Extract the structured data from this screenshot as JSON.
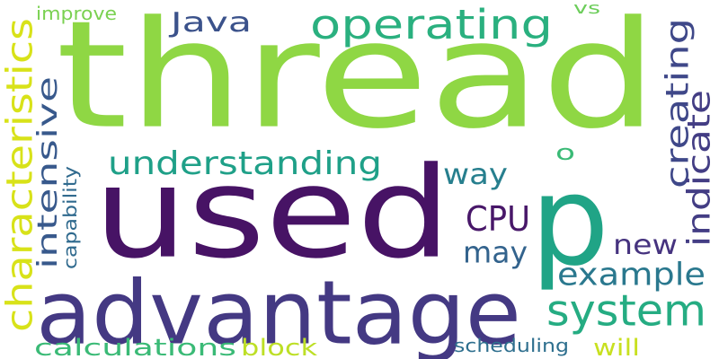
{
  "words": [
    {
      "id": "thread",
      "text": "thread",
      "color": "#8fd744",
      "vertical": false
    },
    {
      "id": "used",
      "text": "used",
      "color": "#471365",
      "vertical": false
    },
    {
      "id": "p",
      "text": "p",
      "color": "#20a486",
      "vertical": false
    },
    {
      "id": "advantage",
      "text": "advantage",
      "color": "#443983",
      "vertical": false
    },
    {
      "id": "operating",
      "text": "operating",
      "color": "#2ab07f",
      "vertical": false
    },
    {
      "id": "system",
      "text": "system",
      "color": "#25ac82",
      "vertical": false
    },
    {
      "id": "understanding",
      "text": "understanding",
      "color": "#1fa088",
      "vertical": false
    },
    {
      "id": "java",
      "text": "Java",
      "color": "#3b528b",
      "vertical": false
    },
    {
      "id": "characteristics",
      "text": "characteristics",
      "color": "#d8e219",
      "vertical": true
    },
    {
      "id": "intensive",
      "text": "intensive",
      "color": "#38598c",
      "vertical": true
    },
    {
      "id": "creating",
      "text": "creating",
      "color": "#3f4889",
      "vertical": true
    },
    {
      "id": "indicate",
      "text": "indicate",
      "color": "#433d84",
      "vertical": true
    },
    {
      "id": "way",
      "text": "way",
      "color": "#277f8e",
      "vertical": false
    },
    {
      "id": "cpu",
      "text": "CPU",
      "color": "#481769",
      "vertical": false
    },
    {
      "id": "may",
      "text": "may",
      "color": "#33638d",
      "vertical": false
    },
    {
      "id": "new",
      "text": "new",
      "color": "#46337f",
      "vertical": false
    },
    {
      "id": "example",
      "text": "example",
      "color": "#2a788e",
      "vertical": false
    },
    {
      "id": "o",
      "text": "o",
      "color": "#3aba76",
      "vertical": false
    },
    {
      "id": "calculations",
      "text": "calculations",
      "color": "#3aba76",
      "vertical": false
    },
    {
      "id": "block",
      "text": "block",
      "color": "#bddf26",
      "vertical": false
    },
    {
      "id": "will",
      "text": "will",
      "color": "#c8e020",
      "vertical": false
    },
    {
      "id": "scheduling",
      "text": "scheduling",
      "color": "#2e6f8e",
      "vertical": false
    },
    {
      "id": "improve",
      "text": "improve",
      "color": "#7ad151",
      "vertical": false
    },
    {
      "id": "vs",
      "text": "vs",
      "color": "#6ccd5a",
      "vertical": false
    },
    {
      "id": "capability",
      "text": "capability",
      "color": "#306a8e",
      "vertical": true
    }
  ]
}
